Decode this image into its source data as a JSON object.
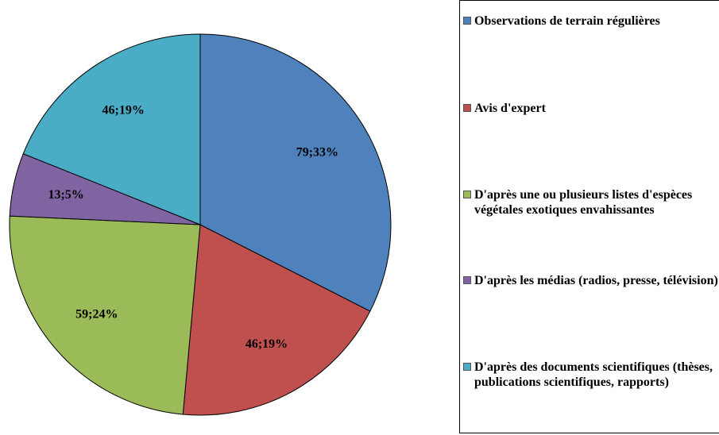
{
  "chart_data": {
    "type": "pie",
    "categories": [
      "Observations de terrain régulières",
      "Avis d'expert",
      "D'après une ou plusieurs listes d'espèces végétales exotiques envahissantes",
      "D'après les médias (radios, presse, télévision)",
      "D'après des documents scientifiques (thèses, publications scientifiques, rapports)"
    ],
    "values": [
      79,
      46,
      59,
      13,
      46
    ],
    "value_labels": [
      "79;33%",
      "46;19%",
      "59;24%",
      "13;5%",
      "46;19%"
    ],
    "colors": [
      "#4f81bd",
      "#c0504d",
      "#9bbb59",
      "#8064a2",
      "#4bacc6"
    ],
    "legend": "right"
  }
}
